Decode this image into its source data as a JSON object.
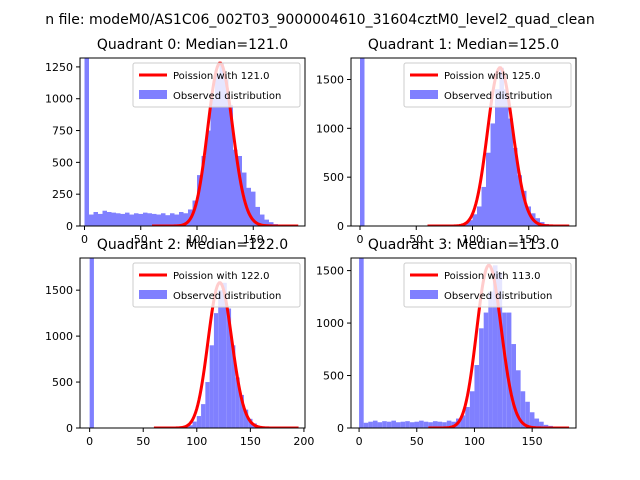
{
  "figure_title": "n file: modeM0/AS1C06_002T03_9000004610_31604cztM0_level2_quad_clean",
  "colors": {
    "hist": "#8080ff",
    "poisson": "#ff0000",
    "axis": "#000000",
    "bg": "#ffffff"
  },
  "chart_data": [
    {
      "type": "bar",
      "title": "Quadrant 0: Median=121.0",
      "legend": [
        "Poission with 121.0",
        "Observed distribution"
      ],
      "legend_position": "top-right",
      "median": 121.0,
      "bin_width": 4,
      "xlim": [
        -4,
        196
      ],
      "ylim": [
        0,
        1320
      ],
      "xticks": [
        0,
        50,
        100,
        150
      ],
      "yticks": [
        0,
        250,
        500,
        750,
        1000,
        1250
      ],
      "bins_x": [
        0,
        4,
        8,
        12,
        16,
        20,
        24,
        28,
        32,
        36,
        40,
        44,
        48,
        52,
        56,
        60,
        64,
        68,
        72,
        76,
        80,
        84,
        88,
        92,
        96,
        100,
        104,
        108,
        112,
        116,
        120,
        124,
        128,
        132,
        136,
        140,
        144,
        148,
        152,
        156,
        160,
        164,
        168,
        172,
        176,
        180,
        184,
        188
      ],
      "counts": [
        1320,
        90,
        110,
        95,
        120,
        110,
        105,
        100,
        95,
        105,
        90,
        100,
        95,
        105,
        100,
        95,
        90,
        100,
        85,
        100,
        90,
        110,
        100,
        130,
        200,
        400,
        550,
        750,
        1000,
        1200,
        1280,
        1150,
        950,
        600,
        550,
        420,
        300,
        270,
        150,
        90,
        50,
        30,
        15,
        8,
        4,
        2,
        1,
        0
      ]
    },
    {
      "type": "bar",
      "title": "Quadrant 1: Median=125.0",
      "legend": [
        "Poission with 125.0",
        "Observed distribution"
      ],
      "legend_position": "top-right",
      "median": 125.0,
      "bin_width": 4,
      "xlim": [
        -8,
        192
      ],
      "ylim": [
        0,
        1720
      ],
      "xticks": [
        0,
        50,
        100,
        150
      ],
      "yticks": [
        0,
        500,
        1000,
        1500
      ],
      "bins_x": [
        0,
        4,
        8,
        12,
        16,
        20,
        24,
        28,
        32,
        36,
        40,
        44,
        48,
        52,
        56,
        60,
        64,
        68,
        72,
        76,
        80,
        84,
        88,
        92,
        96,
        100,
        104,
        108,
        112,
        116,
        120,
        124,
        128,
        132,
        136,
        140,
        144,
        148,
        152,
        156,
        160,
        164,
        168,
        172,
        176
      ],
      "counts": [
        1720,
        0,
        0,
        0,
        0,
        0,
        0,
        0,
        0,
        0,
        0,
        0,
        0,
        0,
        0,
        0,
        0,
        0,
        0,
        0,
        0,
        4,
        10,
        30,
        60,
        120,
        200,
        400,
        750,
        1050,
        1400,
        1620,
        1400,
        1100,
        800,
        520,
        360,
        200,
        130,
        80,
        40,
        20,
        10,
        5,
        2
      ]
    },
    {
      "type": "bar",
      "title": "Quadrant 2: Median=122.0",
      "legend": [
        "Poission with 122.0",
        "Observed distribution"
      ],
      "legend_position": "top-right",
      "median": 122.0,
      "bin_width": 4,
      "xlim": [
        -9,
        201
      ],
      "ylim": [
        0,
        1850
      ],
      "xticks": [
        0,
        50,
        100,
        150,
        200
      ],
      "yticks": [
        0,
        500,
        1000,
        1500
      ],
      "bins_x": [
        0,
        4,
        8,
        12,
        16,
        20,
        24,
        28,
        32,
        36,
        40,
        44,
        48,
        52,
        56,
        60,
        64,
        68,
        72,
        76,
        80,
        84,
        88,
        92,
        96,
        100,
        104,
        108,
        112,
        116,
        120,
        124,
        128,
        132,
        136,
        140,
        144,
        148,
        152,
        156,
        160,
        164,
        168,
        172,
        176,
        180,
        184,
        188
      ],
      "counts": [
        1850,
        0,
        0,
        0,
        0,
        0,
        0,
        0,
        0,
        0,
        0,
        0,
        0,
        0,
        0,
        0,
        0,
        0,
        0,
        0,
        0,
        4,
        10,
        30,
        70,
        130,
        260,
        500,
        900,
        1250,
        1500,
        1580,
        1300,
        900,
        550,
        360,
        200,
        100,
        50,
        20,
        10,
        5,
        2,
        1,
        0,
        0,
        0,
        0
      ]
    },
    {
      "type": "bar",
      "title": "Quadrant 3: Median=113.0",
      "legend": [
        "Poission with 113.0",
        "Observed distribution"
      ],
      "legend_position": "top-right",
      "median": 113.0,
      "bin_width": 4,
      "xlim": [
        -7,
        188
      ],
      "ylim": [
        0,
        1620
      ],
      "xticks": [
        0,
        50,
        100,
        150
      ],
      "yticks": [
        0,
        500,
        1000,
        1500
      ],
      "bins_x": [
        0,
        4,
        8,
        12,
        16,
        20,
        24,
        28,
        32,
        36,
        40,
        44,
        48,
        52,
        56,
        60,
        64,
        68,
        72,
        76,
        80,
        84,
        88,
        92,
        96,
        100,
        104,
        108,
        112,
        116,
        120,
        124,
        128,
        132,
        136,
        140,
        144,
        148,
        152,
        156,
        160,
        164,
        168,
        172,
        176
      ],
      "counts": [
        1620,
        50,
        60,
        70,
        55,
        65,
        60,
        70,
        55,
        60,
        65,
        55,
        60,
        70,
        60,
        55,
        65,
        60,
        55,
        70,
        60,
        90,
        120,
        200,
        350,
        600,
        950,
        1100,
        1300,
        1550,
        1480,
        1100,
        1100,
        800,
        550,
        350,
        250,
        150,
        90,
        60,
        30,
        20,
        10,
        5,
        2
      ]
    }
  ]
}
